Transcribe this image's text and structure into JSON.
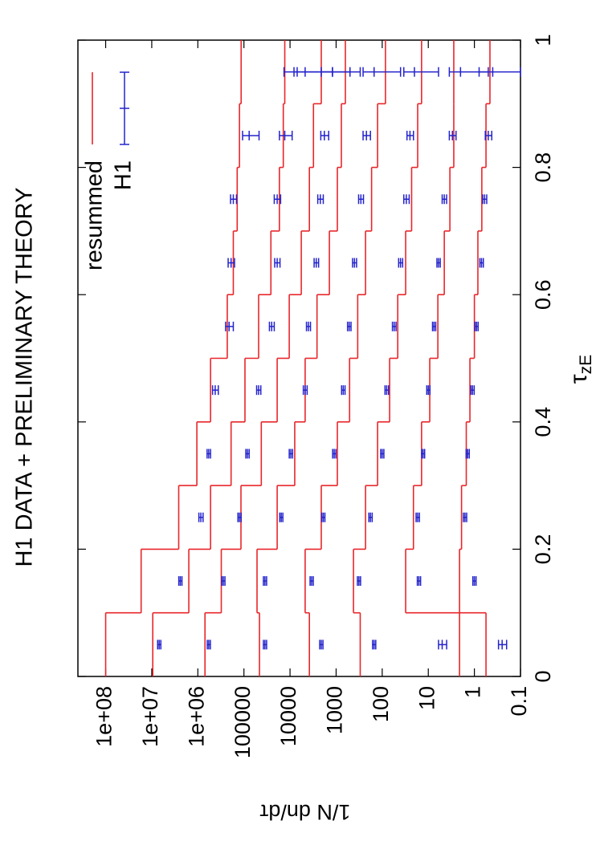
{
  "chart_data": {
    "type": "step-errorbar",
    "title": "H1 DATA + PRELIMINARY THEORY",
    "xlabel": {
      "symbol": "τ",
      "subscript": "zE"
    },
    "ylabel": "1/N dn/dτ",
    "xlim": [
      0,
      1
    ],
    "xticks": [
      0,
      0.2,
      0.4,
      0.6,
      0.8,
      1
    ],
    "ylim": [
      0.1,
      400000000
    ],
    "log_y": true,
    "yticks": [
      {
        "value": 100000000,
        "label": "1e+08"
      },
      {
        "value": 10000000,
        "label": "1e+07"
      },
      {
        "value": 1000000,
        "label": "1e+06"
      },
      100000,
      10000,
      1000,
      100,
      10,
      1,
      0.1
    ],
    "legend": "top-right",
    "bins": [
      0,
      0.1,
      0.2,
      0.3,
      0.4,
      0.5,
      0.6,
      0.7,
      0.8,
      0.9,
      1
    ],
    "x": [
      0.05,
      0.15,
      0.25,
      0.35,
      0.45,
      0.55,
      0.65,
      0.75,
      0.85,
      0.95
    ],
    "resummed": {
      "name": "resummed",
      "color": "#e8262b",
      "curves": [
        [
          100000000,
          17000000,
          2600000,
          1050000,
          530000,
          230000,
          170000,
          140000,
          125000,
          115000
        ],
        [
          9500000,
          1570000,
          530000,
          190000,
          95000,
          48000,
          26000,
          17000,
          14000,
          13000
        ],
        [
          700000,
          310000,
          116000,
          42000,
          19000,
          10400,
          5700,
          3800,
          3100,
          2100
        ],
        [
          46000,
          52000,
          19000,
          7900,
          4700,
          2600,
          1400,
          940,
          770,
          630
        ],
        [
          3800,
          4700,
          2100,
          940,
          510,
          340,
          230,
          170,
          126,
          85
        ],
        [
          300,
          420,
          230,
          126,
          69,
          46,
          31,
          23,
          17,
          14
        ],
        [
          2.1,
          31,
          21,
          14,
          9.3,
          6.2,
          4.5,
          3.4,
          2.8,
          2.8
        ],
        [
          0.56,
          2.1,
          1.9,
          1.5,
          1.25,
          1,
          0.84,
          0.69,
          0.56,
          0.46
        ]
      ]
    },
    "h1": {
      "name": "H1",
      "color": "#2323cc",
      "sets": [
        {
          "values": [
            6900000,
            2400000,
            860000,
            580000,
            420000,
            210000,
            190000,
            170000,
            77000,
            7000
          ],
          "errors": [
            550000,
            190000,
            90000,
            50000,
            60000,
            40000,
            30000,
            25000,
            30000,
            6500
          ]
        },
        {
          "values": [
            580000,
            280000,
            125000,
            84000,
            48000,
            25000,
            19000,
            19000,
            13000,
            4700
          ],
          "errors": [
            45000,
            22000,
            10000,
            7000,
            5000,
            3000,
            2500,
            3000,
            4000,
            3500
          ]
        },
        {
          "values": [
            35000,
            35000,
            15500,
            9600,
            4700,
            4000,
            2700,
            2200,
            1800,
            1200
          ],
          "errors": [
            2800,
            2800,
            1200,
            800,
            450,
            400,
            300,
            300,
            350,
            900
          ]
        },
        {
          "values": [
            2100,
            3400,
            1900,
            1100,
            700,
            520,
            400,
            290,
            220,
            150
          ],
          "errors": [
            170,
            270,
            150,
            90,
            60,
            45,
            40,
            35,
            40,
            110
          ]
        },
        {
          "values": [
            150,
            320,
            180,
            100,
            80,
            55,
            40,
            30,
            25,
            20
          ],
          "errors": [
            12,
            25,
            15,
            8,
            7,
            5,
            4,
            4,
            4,
            14
          ]
        },
        {
          "values": [
            5,
            16,
            17,
            13,
            10,
            7.5,
            6,
            4.5,
            3,
            2
          ],
          "errors": [
            1,
            1.3,
            1.4,
            1,
            0.8,
            0.6,
            0.5,
            0.5,
            0.5,
            1.5
          ]
        },
        {
          "values": [
            0.25,
            1,
            1.6,
            1.4,
            1.1,
            0.9,
            0.7,
            0.6,
            0.5,
            0.4
          ],
          "errors": [
            0.05,
            0.08,
            0.13,
            0.11,
            0.09,
            0.07,
            0.06,
            0.06,
            0.08,
            0.39
          ]
        }
      ]
    }
  }
}
